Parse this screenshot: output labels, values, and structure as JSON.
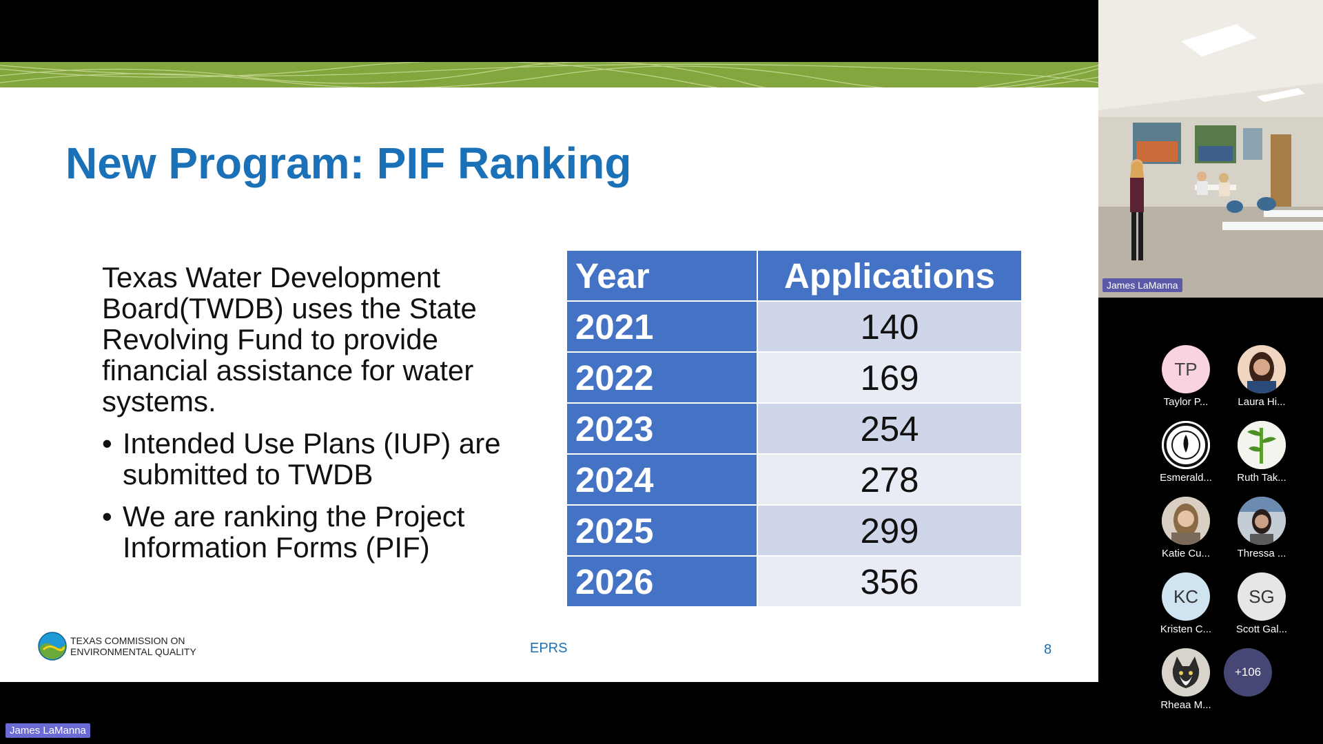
{
  "slide": {
    "title": "New Program: PIF Ranking",
    "intro": "Texas Water Development Board(TWDB) uses the State Revolving Fund to provide financial assistance for water systems.",
    "bullets": [
      "Intended Use Plans (IUP) are submitted to TWDB",
      "We are ranking the Project Information Forms (PIF)"
    ],
    "bullet_glyph": "•",
    "table": {
      "headers": [
        "Year",
        "Applications"
      ],
      "rows": [
        {
          "year": "2021",
          "value": "140"
        },
        {
          "year": "2022",
          "value": "169"
        },
        {
          "year": "2023",
          "value": "254"
        },
        {
          "year": "2024",
          "value": "278"
        },
        {
          "year": "2025",
          "value": "299"
        },
        {
          "year": "2026",
          "value": "356"
        }
      ]
    },
    "footer": {
      "logo_line1": "TEXAS COMMISSION ON",
      "logo_line2": "ENVIRONMENTAL QUALITY",
      "center": "EPRS",
      "page_number": "8"
    },
    "colors": {
      "title": "#1a71b8",
      "table_header": "#4472c4",
      "row_odd": "#cfd6ea",
      "row_even": "#e9ecf4",
      "banner": "#84a63e"
    }
  },
  "meeting": {
    "presenter_label": "James LaManna",
    "video_name": "James LaManna",
    "participants": [
      {
        "initials": "TP",
        "name": "Taylor P...",
        "bg": "#f9d3dd",
        "fg": "#444",
        "icon": "initials-avatar"
      },
      {
        "initials": "",
        "name": "Laura Hi...",
        "bg": "#8b5a4a",
        "fg": "#fff",
        "icon": "photo-avatar"
      },
      {
        "initials": "",
        "name": "Esmerald...",
        "bg": "#ffffff",
        "fg": "#000",
        "icon": "seal-avatar"
      },
      {
        "initials": "",
        "name": "Ruth Tak...",
        "bg": "#f4f4ee",
        "fg": "#000",
        "icon": "plant-avatar"
      },
      {
        "initials": "",
        "name": "Katie Cu...",
        "bg": "#b8a48e",
        "fg": "#fff",
        "icon": "photo-avatar"
      },
      {
        "initials": "",
        "name": "Thressa ...",
        "bg": "#7d8ea0",
        "fg": "#fff",
        "icon": "photo-avatar"
      },
      {
        "initials": "KC",
        "name": "Kristen C...",
        "bg": "#cfe3f1",
        "fg": "#333",
        "icon": "initials-avatar"
      },
      {
        "initials": "SG",
        "name": "Scott Gal...",
        "bg": "#e6e6e6",
        "fg": "#333",
        "icon": "initials-avatar"
      },
      {
        "initials": "",
        "name": "Rheaa M...",
        "bg": "#6e6e6e",
        "fg": "#fff",
        "icon": "cat-photo-avatar"
      }
    ],
    "more_count": "+106"
  }
}
